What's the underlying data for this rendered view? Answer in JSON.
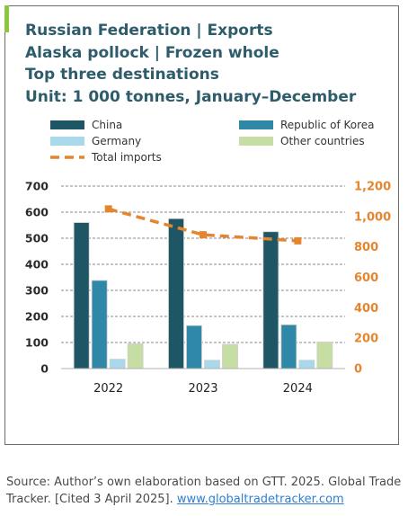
{
  "title_lines": [
    "Russian Federation | Exports",
    "Alaska pollock  | Frozen whole",
    "Top three destinations",
    "Unit: 1 000 tonnes, January–December"
  ],
  "source": {
    "text": "Source: Author’s own elaboration based on GTT. 2025. Global Trade Tracker. [Cited 3 April 2025]. ",
    "link_text": "www.globaltradetracker.com"
  },
  "colors": {
    "china": "#1f5666",
    "korea": "#2f88a8",
    "germany": "#a9d8ea",
    "other": "#c6dea3",
    "total": "#e5862f",
    "grid": "#888888",
    "axis": "#b0b0b0"
  },
  "chart_data": {
    "type": "bar",
    "categories": [
      "2022",
      "2023",
      "2024"
    ],
    "series": [
      {
        "name": "China",
        "values": [
          560,
          575,
          525
        ],
        "axis": "left",
        "color": "#1f5666"
      },
      {
        "name": "Republic of Korea",
        "values": [
          338,
          165,
          168
        ],
        "axis": "left",
        "color": "#2f88a8"
      },
      {
        "name": "Germany",
        "values": [
          36,
          32,
          32
        ],
        "axis": "left",
        "color": "#a9d8ea"
      },
      {
        "name": "Other countries",
        "values": [
          95,
          93,
          102
        ],
        "axis": "left",
        "color": "#c6dea3"
      },
      {
        "name": "Total imports",
        "type": "line",
        "style": "dashed",
        "axis": "right",
        "values": [
          1050,
          880,
          840
        ],
        "color": "#e5862f"
      }
    ],
    "y_left": {
      "min": 0,
      "max": 700,
      "ticks": [
        "0",
        "100",
        "200",
        "300",
        "400",
        "500",
        "600",
        "700"
      ]
    },
    "y_right": {
      "min": 0,
      "max": 1200,
      "ticks": [
        "0",
        "200",
        "400",
        "600",
        "800",
        "1,000",
        "1,200"
      ]
    },
    "grid": true,
    "legend_position": "top"
  }
}
